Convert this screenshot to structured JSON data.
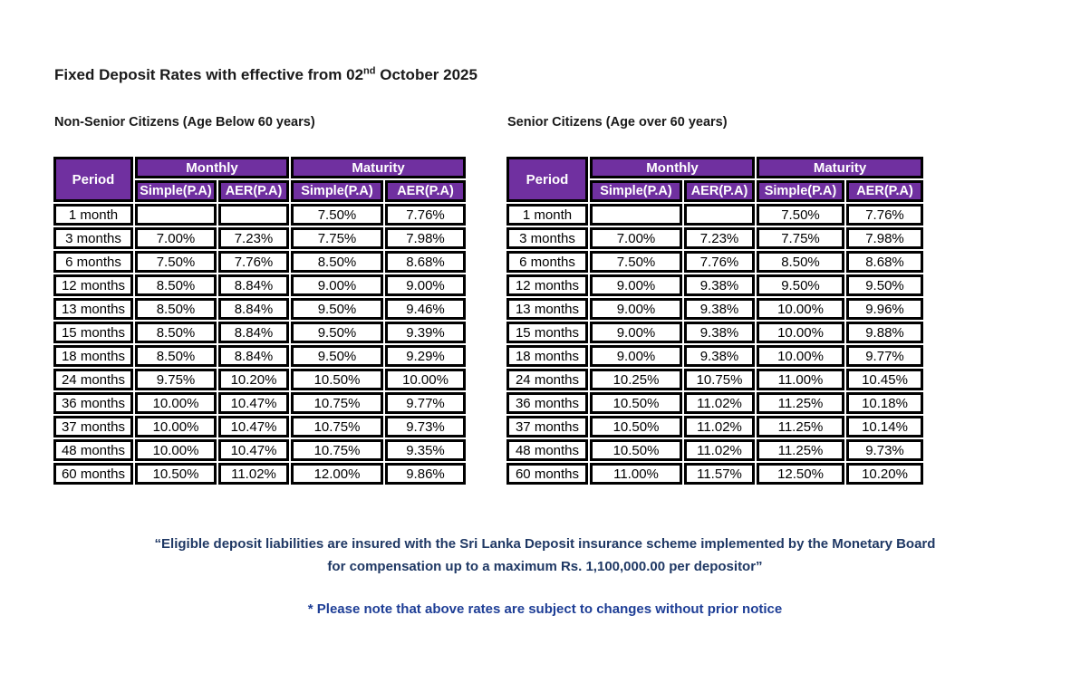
{
  "document": {
    "title": {
      "text_before_sup": "Fixed Deposit Rates with effective from 02",
      "superscript": "nd",
      "text_after_sup": " October 2025"
    }
  },
  "colors": {
    "header_purple": "#7030A0",
    "table_border": "#000000",
    "quote_navy": "#1F3864",
    "note_blue": "#1E3E96"
  },
  "tables": [
    {
      "caption": "Non-Senior Citizens (Age Below 60 years)",
      "columns": {
        "period": "Period",
        "monthly": "Monthly",
        "maturity": "Maturity",
        "simple": "Simple(P.A)",
        "aer": "AER(P.A)"
      },
      "rows": [
        [
          "1 month",
          "",
          "",
          "7.50%",
          "7.76%"
        ],
        [
          "3 months",
          "7.00%",
          "7.23%",
          "7.75%",
          "7.98%"
        ],
        [
          "6 months",
          "7.50%",
          "7.76%",
          "8.50%",
          "8.68%"
        ],
        [
          "12 months",
          "8.50%",
          "8.84%",
          "9.00%",
          "9.00%"
        ],
        [
          "13 months",
          "8.50%",
          "8.84%",
          "9.50%",
          "9.46%"
        ],
        [
          "15 months",
          "8.50%",
          "8.84%",
          "9.50%",
          "9.39%"
        ],
        [
          "18 months",
          "8.50%",
          "8.84%",
          "9.50%",
          "9.29%"
        ],
        [
          "24 months",
          "9.75%",
          "10.20%",
          "10.50%",
          "10.00%"
        ],
        [
          "36 months",
          "10.00%",
          "10.47%",
          "10.75%",
          "9.77%"
        ],
        [
          "37 months",
          "10.00%",
          "10.47%",
          "10.75%",
          "9.73%"
        ],
        [
          "48 months",
          "10.00%",
          "10.47%",
          "10.75%",
          "9.35%"
        ],
        [
          "60 months",
          "10.50%",
          "11.02%",
          "12.00%",
          "9.86%"
        ]
      ]
    },
    {
      "caption": "Senior Citizens (Age over 60 years)",
      "columns": {
        "period": "Period",
        "monthly": "Monthly",
        "maturity": "Maturity",
        "simple": "Simple(P.A)",
        "aer": "AER(P.A)"
      },
      "rows": [
        [
          "1 month",
          "",
          "",
          "7.50%",
          "7.76%"
        ],
        [
          "3 months",
          "7.00%",
          "7.23%",
          "7.75%",
          "7.98%"
        ],
        [
          "6 months",
          "7.50%",
          "7.76%",
          "8.50%",
          "8.68%"
        ],
        [
          "12 months",
          "9.00%",
          "9.38%",
          "9.50%",
          "9.50%"
        ],
        [
          "13 months",
          "9.00%",
          "9.38%",
          "10.00%",
          "9.96%"
        ],
        [
          "15 months",
          "9.00%",
          "9.38%",
          "10.00%",
          "9.88%"
        ],
        [
          "18 months",
          "9.00%",
          "9.38%",
          "10.00%",
          "9.77%"
        ],
        [
          "24 months",
          "10.25%",
          "10.75%",
          "11.00%",
          "10.45%"
        ],
        [
          "36 months",
          "10.50%",
          "11.02%",
          "11.25%",
          "10.18%"
        ],
        [
          "37 months",
          "10.50%",
          "11.02%",
          "11.25%",
          "10.14%"
        ],
        [
          "48 months",
          "10.50%",
          "11.02%",
          "11.25%",
          "9.73%"
        ],
        [
          "60 months",
          "11.00%",
          "11.57%",
          "12.50%",
          "10.20%"
        ]
      ]
    }
  ],
  "footer": {
    "insurance_quote_line1": "“Eligible deposit liabilities are insured with the Sri Lanka Deposit insurance scheme implemented by the Monetary Board",
    "insurance_quote_line2": "for compensation up to a maximum Rs. 1,100,000.00 per depositor”",
    "rates_note": "* Please note that above rates are subject to changes without prior notice"
  }
}
